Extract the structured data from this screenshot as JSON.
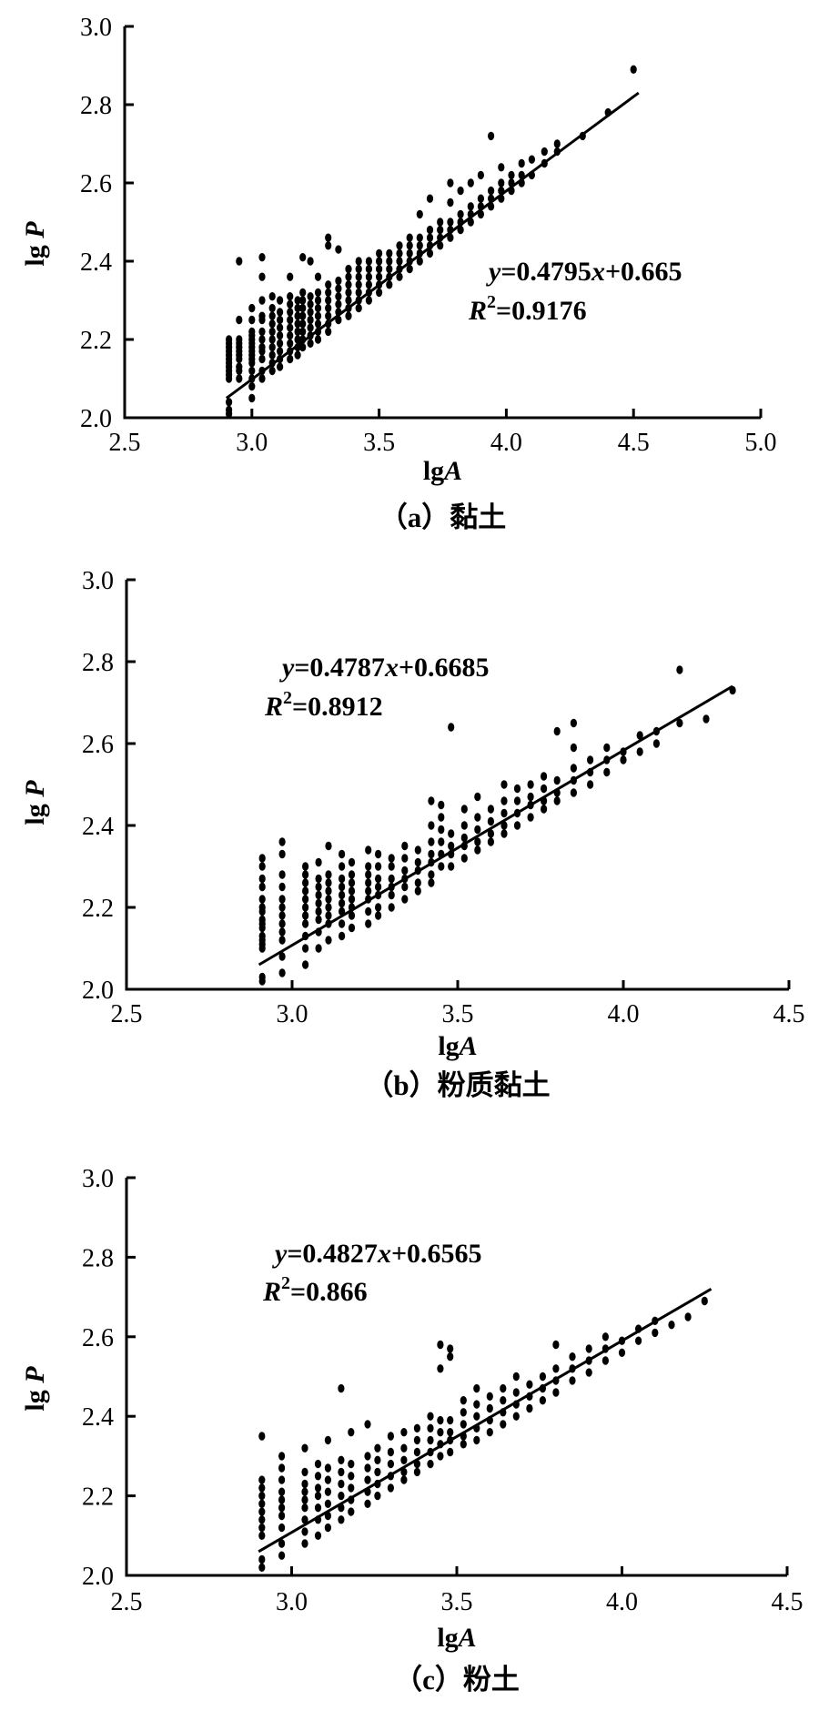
{
  "figure": {
    "description": "Three stacked scatter plots of lgP versus lgA with linear regression fits",
    "colors": {
      "ink": "#000000",
      "background": "#ffffff"
    }
  },
  "chart_data": [
    {
      "type": "scatter",
      "panel": "a",
      "caption": "（a）黏土",
      "xlabel": "lgA",
      "ylabel": "lgP",
      "equation": "y=0.4795x+0.665",
      "r_squared": "R2=0.9176",
      "xlim": [
        2.5,
        5.0
      ],
      "ylim": [
        2.0,
        3.0
      ],
      "x_ticks": [
        "2.5",
        "3.0",
        "3.5",
        "4.0",
        "4.5",
        "5.0"
      ],
      "y_ticks": [
        "2.0",
        "2.2",
        "2.4",
        "2.6",
        "2.8",
        "3.0"
      ],
      "trendline": {
        "x1": 2.9,
        "y1": 2.05,
        "x2": 4.52,
        "y2": 2.83
      },
      "columns": [
        {
          "x": 2.91,
          "ys": [
            2.01,
            2.02,
            2.04,
            2.1,
            2.11,
            2.12,
            2.13,
            2.14,
            2.15,
            2.16,
            2.17,
            2.18,
            2.19,
            2.2
          ]
        },
        {
          "x": 2.95,
          "ys": [
            2.1,
            2.12,
            2.13,
            2.15,
            2.16,
            2.17,
            2.18,
            2.19,
            2.2,
            2.25,
            2.4
          ]
        },
        {
          "x": 3.0,
          "ys": [
            2.05,
            2.08,
            2.1,
            2.12,
            2.14,
            2.15,
            2.16,
            2.17,
            2.18,
            2.19,
            2.2,
            2.21,
            2.22,
            2.25,
            2.28
          ]
        },
        {
          "x": 3.04,
          "ys": [
            2.1,
            2.12,
            2.15,
            2.17,
            2.18,
            2.2,
            2.22,
            2.25,
            2.26,
            2.3,
            2.36,
            2.41
          ]
        },
        {
          "x": 3.08,
          "ys": [
            2.12,
            2.14,
            2.16,
            2.18,
            2.2,
            2.22,
            2.24,
            2.26,
            2.28,
            2.31
          ]
        },
        {
          "x": 3.11,
          "ys": [
            2.13,
            2.15,
            2.17,
            2.19,
            2.21,
            2.23,
            2.25,
            2.27,
            2.3
          ]
        },
        {
          "x": 3.15,
          "ys": [
            2.15,
            2.17,
            2.19,
            2.21,
            2.23,
            2.25,
            2.27,
            2.29,
            2.31,
            2.36
          ]
        },
        {
          "x": 3.18,
          "ys": [
            2.16,
            2.18,
            2.2,
            2.22,
            2.24,
            2.26,
            2.28,
            2.3
          ]
        },
        {
          "x": 3.2,
          "ys": [
            2.18,
            2.2,
            2.22,
            2.24,
            2.26,
            2.28,
            2.3,
            2.32,
            2.41
          ]
        },
        {
          "x": 3.23,
          "ys": [
            2.19,
            2.21,
            2.23,
            2.25,
            2.27,
            2.29,
            2.31,
            2.4
          ]
        },
        {
          "x": 3.26,
          "ys": [
            2.2,
            2.22,
            2.24,
            2.26,
            2.28,
            2.3,
            2.32,
            2.36
          ]
        },
        {
          "x": 3.3,
          "ys": [
            2.22,
            2.24,
            2.26,
            2.28,
            2.3,
            2.32,
            2.34,
            2.44,
            2.46
          ]
        },
        {
          "x": 3.34,
          "ys": [
            2.25,
            2.27,
            2.29,
            2.31,
            2.33,
            2.35,
            2.43
          ]
        },
        {
          "x": 3.38,
          "ys": [
            2.26,
            2.28,
            2.3,
            2.32,
            2.34,
            2.36,
            2.38
          ]
        },
        {
          "x": 3.42,
          "ys": [
            2.28,
            2.3,
            2.32,
            2.34,
            2.36,
            2.38,
            2.4
          ]
        },
        {
          "x": 3.46,
          "ys": [
            2.3,
            2.32,
            2.34,
            2.36,
            2.38,
            2.4
          ]
        },
        {
          "x": 3.5,
          "ys": [
            2.32,
            2.34,
            2.36,
            2.38,
            2.4,
            2.42
          ]
        },
        {
          "x": 3.54,
          "ys": [
            2.34,
            2.36,
            2.38,
            2.4,
            2.42
          ]
        },
        {
          "x": 3.58,
          "ys": [
            2.36,
            2.38,
            2.4,
            2.42,
            2.44
          ]
        },
        {
          "x": 3.62,
          "ys": [
            2.38,
            2.4,
            2.42,
            2.44,
            2.46
          ]
        },
        {
          "x": 3.66,
          "ys": [
            2.4,
            2.42,
            2.44,
            2.46,
            2.52
          ]
        },
        {
          "x": 3.7,
          "ys": [
            2.42,
            2.44,
            2.46,
            2.48,
            2.56
          ]
        },
        {
          "x": 3.74,
          "ys": [
            2.44,
            2.46,
            2.48,
            2.5
          ]
        },
        {
          "x": 3.78,
          "ys": [
            2.46,
            2.48,
            2.5,
            2.55,
            2.6
          ]
        },
        {
          "x": 3.82,
          "ys": [
            2.48,
            2.5,
            2.52,
            2.58
          ]
        },
        {
          "x": 3.86,
          "ys": [
            2.5,
            2.52,
            2.54,
            2.6
          ]
        },
        {
          "x": 3.9,
          "ys": [
            2.52,
            2.54,
            2.56,
            2.62
          ]
        },
        {
          "x": 3.94,
          "ys": [
            2.54,
            2.56,
            2.58,
            2.72
          ]
        },
        {
          "x": 3.98,
          "ys": [
            2.56,
            2.58,
            2.6,
            2.64
          ]
        },
        {
          "x": 4.02,
          "ys": [
            2.58,
            2.6,
            2.62
          ]
        },
        {
          "x": 4.06,
          "ys": [
            2.6,
            2.62,
            2.65
          ]
        },
        {
          "x": 4.1,
          "ys": [
            2.62,
            2.66
          ]
        },
        {
          "x": 4.15,
          "ys": [
            2.65,
            2.68
          ]
        },
        {
          "x": 4.2,
          "ys": [
            2.68,
            2.7
          ]
        },
        {
          "x": 4.3,
          "ys": [
            2.72
          ]
        },
        {
          "x": 4.4,
          "ys": [
            2.78
          ]
        },
        {
          "x": 4.5,
          "ys": [
            2.89
          ]
        }
      ]
    },
    {
      "type": "scatter",
      "panel": "b",
      "caption": "（b）粉质黏土",
      "xlabel": "lgA",
      "ylabel": "lgP",
      "equation": "y=0.4787x+0.6685",
      "r_squared": "R2=0.8912",
      "xlim": [
        2.5,
        4.5
      ],
      "ylim": [
        2.0,
        3.0
      ],
      "x_ticks": [
        "2.5",
        "3.0",
        "3.5",
        "4.0",
        "4.5"
      ],
      "y_ticks": [
        "2.0",
        "2.2",
        "2.4",
        "2.6",
        "2.8",
        "3.0"
      ],
      "trendline": {
        "x1": 2.9,
        "y1": 2.06,
        "x2": 4.33,
        "y2": 2.74
      },
      "columns": [
        {
          "x": 2.91,
          "ys": [
            2.02,
            2.03,
            2.1,
            2.11,
            2.12,
            2.13,
            2.15,
            2.16,
            2.17,
            2.19,
            2.2,
            2.22,
            2.25,
            2.27,
            2.3,
            2.32
          ]
        },
        {
          "x": 2.97,
          "ys": [
            2.04,
            2.08,
            2.12,
            2.14,
            2.16,
            2.18,
            2.2,
            2.22,
            2.25,
            2.28,
            2.33,
            2.36
          ]
        },
        {
          "x": 3.04,
          "ys": [
            2.06,
            2.1,
            2.13,
            2.16,
            2.18,
            2.2,
            2.22,
            2.24,
            2.26,
            2.28,
            2.3
          ]
        },
        {
          "x": 3.08,
          "ys": [
            2.1,
            2.14,
            2.17,
            2.19,
            2.21,
            2.23,
            2.25,
            2.27,
            2.31
          ]
        },
        {
          "x": 3.11,
          "ys": [
            2.12,
            2.16,
            2.18,
            2.2,
            2.22,
            2.24,
            2.26,
            2.28,
            2.35
          ]
        },
        {
          "x": 3.15,
          "ys": [
            2.13,
            2.16,
            2.19,
            2.21,
            2.23,
            2.25,
            2.27,
            2.3,
            2.33
          ]
        },
        {
          "x": 3.18,
          "ys": [
            2.15,
            2.18,
            2.2,
            2.22,
            2.24,
            2.26,
            2.28,
            2.31
          ]
        },
        {
          "x": 3.23,
          "ys": [
            2.16,
            2.19,
            2.22,
            2.24,
            2.26,
            2.28,
            2.3,
            2.34
          ]
        },
        {
          "x": 3.26,
          "ys": [
            2.18,
            2.2,
            2.23,
            2.25,
            2.27,
            2.3,
            2.33
          ]
        },
        {
          "x": 3.3,
          "ys": [
            2.2,
            2.23,
            2.25,
            2.27,
            2.3,
            2.32
          ]
        },
        {
          "x": 3.34,
          "ys": [
            2.22,
            2.25,
            2.27,
            2.29,
            2.32,
            2.35
          ]
        },
        {
          "x": 3.38,
          "ys": [
            2.24,
            2.26,
            2.29,
            2.31,
            2.34
          ]
        },
        {
          "x": 3.42,
          "ys": [
            2.26,
            2.28,
            2.31,
            2.33,
            2.36,
            2.4,
            2.46
          ]
        },
        {
          "x": 3.45,
          "ys": [
            2.3,
            2.33,
            2.36,
            2.39,
            2.42,
            2.45
          ]
        },
        {
          "x": 3.48,
          "ys": [
            2.3,
            2.33,
            2.35,
            2.38,
            2.64
          ]
        },
        {
          "x": 3.52,
          "ys": [
            2.32,
            2.35,
            2.37,
            2.4,
            2.44
          ]
        },
        {
          "x": 3.56,
          "ys": [
            2.34,
            2.36,
            2.39,
            2.42,
            2.47
          ]
        },
        {
          "x": 3.6,
          "ys": [
            2.36,
            2.38,
            2.41,
            2.44
          ]
        },
        {
          "x": 3.64,
          "ys": [
            2.38,
            2.4,
            2.43,
            2.46,
            2.5
          ]
        },
        {
          "x": 3.68,
          "ys": [
            2.4,
            2.43,
            2.46,
            2.49
          ]
        },
        {
          "x": 3.72,
          "ys": [
            2.42,
            2.45,
            2.47,
            2.5
          ]
        },
        {
          "x": 3.76,
          "ys": [
            2.44,
            2.46,
            2.49,
            2.52
          ]
        },
        {
          "x": 3.8,
          "ys": [
            2.46,
            2.48,
            2.51,
            2.63
          ]
        },
        {
          "x": 3.85,
          "ys": [
            2.48,
            2.51,
            2.54,
            2.59,
            2.65
          ]
        },
        {
          "x": 3.9,
          "ys": [
            2.5,
            2.53,
            2.56
          ]
        },
        {
          "x": 3.95,
          "ys": [
            2.53,
            2.56,
            2.59
          ]
        },
        {
          "x": 4.0,
          "ys": [
            2.56,
            2.58
          ]
        },
        {
          "x": 4.05,
          "ys": [
            2.58,
            2.62
          ]
        },
        {
          "x": 4.1,
          "ys": [
            2.6,
            2.63
          ]
        },
        {
          "x": 4.17,
          "ys": [
            2.65,
            2.78
          ]
        },
        {
          "x": 4.25,
          "ys": [
            2.66
          ]
        },
        {
          "x": 4.33,
          "ys": [
            2.73
          ]
        }
      ]
    },
    {
      "type": "scatter",
      "panel": "c",
      "caption": "（c）粉土",
      "xlabel": "lgA",
      "ylabel": "lgP",
      "equation": "y=0.4827x+0.6565",
      "r_squared": "R2=0.866",
      "xlim": [
        2.5,
        4.5
      ],
      "ylim": [
        2.0,
        3.0
      ],
      "x_ticks": [
        "2.5",
        "3.0",
        "3.5",
        "4.0",
        "4.5"
      ],
      "y_ticks": [
        "2.0",
        "2.2",
        "2.4",
        "2.6",
        "2.8",
        "3.0"
      ],
      "trendline": {
        "x1": 2.9,
        "y1": 2.06,
        "x2": 4.27,
        "y2": 2.72
      },
      "columns": [
        {
          "x": 2.91,
          "ys": [
            2.02,
            2.04,
            2.1,
            2.12,
            2.14,
            2.16,
            2.18,
            2.2,
            2.22,
            2.24,
            2.35
          ]
        },
        {
          "x": 2.97,
          "ys": [
            2.05,
            2.08,
            2.12,
            2.15,
            2.17,
            2.19,
            2.21,
            2.24,
            2.27,
            2.3
          ]
        },
        {
          "x": 3.04,
          "ys": [
            2.08,
            2.11,
            2.14,
            2.17,
            2.19,
            2.21,
            2.23,
            2.26,
            2.32
          ]
        },
        {
          "x": 3.08,
          "ys": [
            2.1,
            2.14,
            2.17,
            2.2,
            2.22,
            2.25,
            2.28
          ]
        },
        {
          "x": 3.11,
          "ys": [
            2.12,
            2.15,
            2.18,
            2.21,
            2.24,
            2.27,
            2.34
          ]
        },
        {
          "x": 3.15,
          "ys": [
            2.14,
            2.17,
            2.2,
            2.23,
            2.26,
            2.29,
            2.47
          ]
        },
        {
          "x": 3.18,
          "ys": [
            2.16,
            2.19,
            2.22,
            2.25,
            2.28,
            2.36
          ]
        },
        {
          "x": 3.23,
          "ys": [
            2.18,
            2.21,
            2.24,
            2.27,
            2.3,
            2.38
          ]
        },
        {
          "x": 3.26,
          "ys": [
            2.2,
            2.23,
            2.26,
            2.29,
            2.32
          ]
        },
        {
          "x": 3.3,
          "ys": [
            2.22,
            2.25,
            2.28,
            2.31,
            2.35
          ]
        },
        {
          "x": 3.34,
          "ys": [
            2.24,
            2.26,
            2.29,
            2.32,
            2.36
          ]
        },
        {
          "x": 3.38,
          "ys": [
            2.26,
            2.28,
            2.31,
            2.34,
            2.37
          ]
        },
        {
          "x": 3.42,
          "ys": [
            2.28,
            2.31,
            2.34,
            2.37,
            2.4
          ]
        },
        {
          "x": 3.45,
          "ys": [
            2.3,
            2.33,
            2.36,
            2.39,
            2.52,
            2.58
          ]
        },
        {
          "x": 3.48,
          "ys": [
            2.31,
            2.34,
            2.36,
            2.39,
            2.55,
            2.57
          ]
        },
        {
          "x": 3.52,
          "ys": [
            2.33,
            2.35,
            2.38,
            2.41,
            2.44
          ]
        },
        {
          "x": 3.56,
          "ys": [
            2.34,
            2.37,
            2.4,
            2.43,
            2.47
          ]
        },
        {
          "x": 3.6,
          "ys": [
            2.36,
            2.39,
            2.42,
            2.45
          ]
        },
        {
          "x": 3.64,
          "ys": [
            2.38,
            2.41,
            2.44,
            2.47
          ]
        },
        {
          "x": 3.68,
          "ys": [
            2.4,
            2.43,
            2.46,
            2.5
          ]
        },
        {
          "x": 3.72,
          "ys": [
            2.42,
            2.45,
            2.48
          ]
        },
        {
          "x": 3.76,
          "ys": [
            2.44,
            2.47,
            2.5
          ]
        },
        {
          "x": 3.8,
          "ys": [
            2.46,
            2.49,
            2.52,
            2.58
          ]
        },
        {
          "x": 3.85,
          "ys": [
            2.49,
            2.52,
            2.55
          ]
        },
        {
          "x": 3.9,
          "ys": [
            2.51,
            2.54,
            2.57
          ]
        },
        {
          "x": 3.95,
          "ys": [
            2.54,
            2.57,
            2.6
          ]
        },
        {
          "x": 4.0,
          "ys": [
            2.56,
            2.59
          ]
        },
        {
          "x": 4.05,
          "ys": [
            2.59,
            2.62
          ]
        },
        {
          "x": 4.1,
          "ys": [
            2.61,
            2.64
          ]
        },
        {
          "x": 4.15,
          "ys": [
            2.63
          ]
        },
        {
          "x": 4.2,
          "ys": [
            2.65
          ]
        },
        {
          "x": 4.25,
          "ys": [
            2.69
          ]
        }
      ]
    }
  ]
}
